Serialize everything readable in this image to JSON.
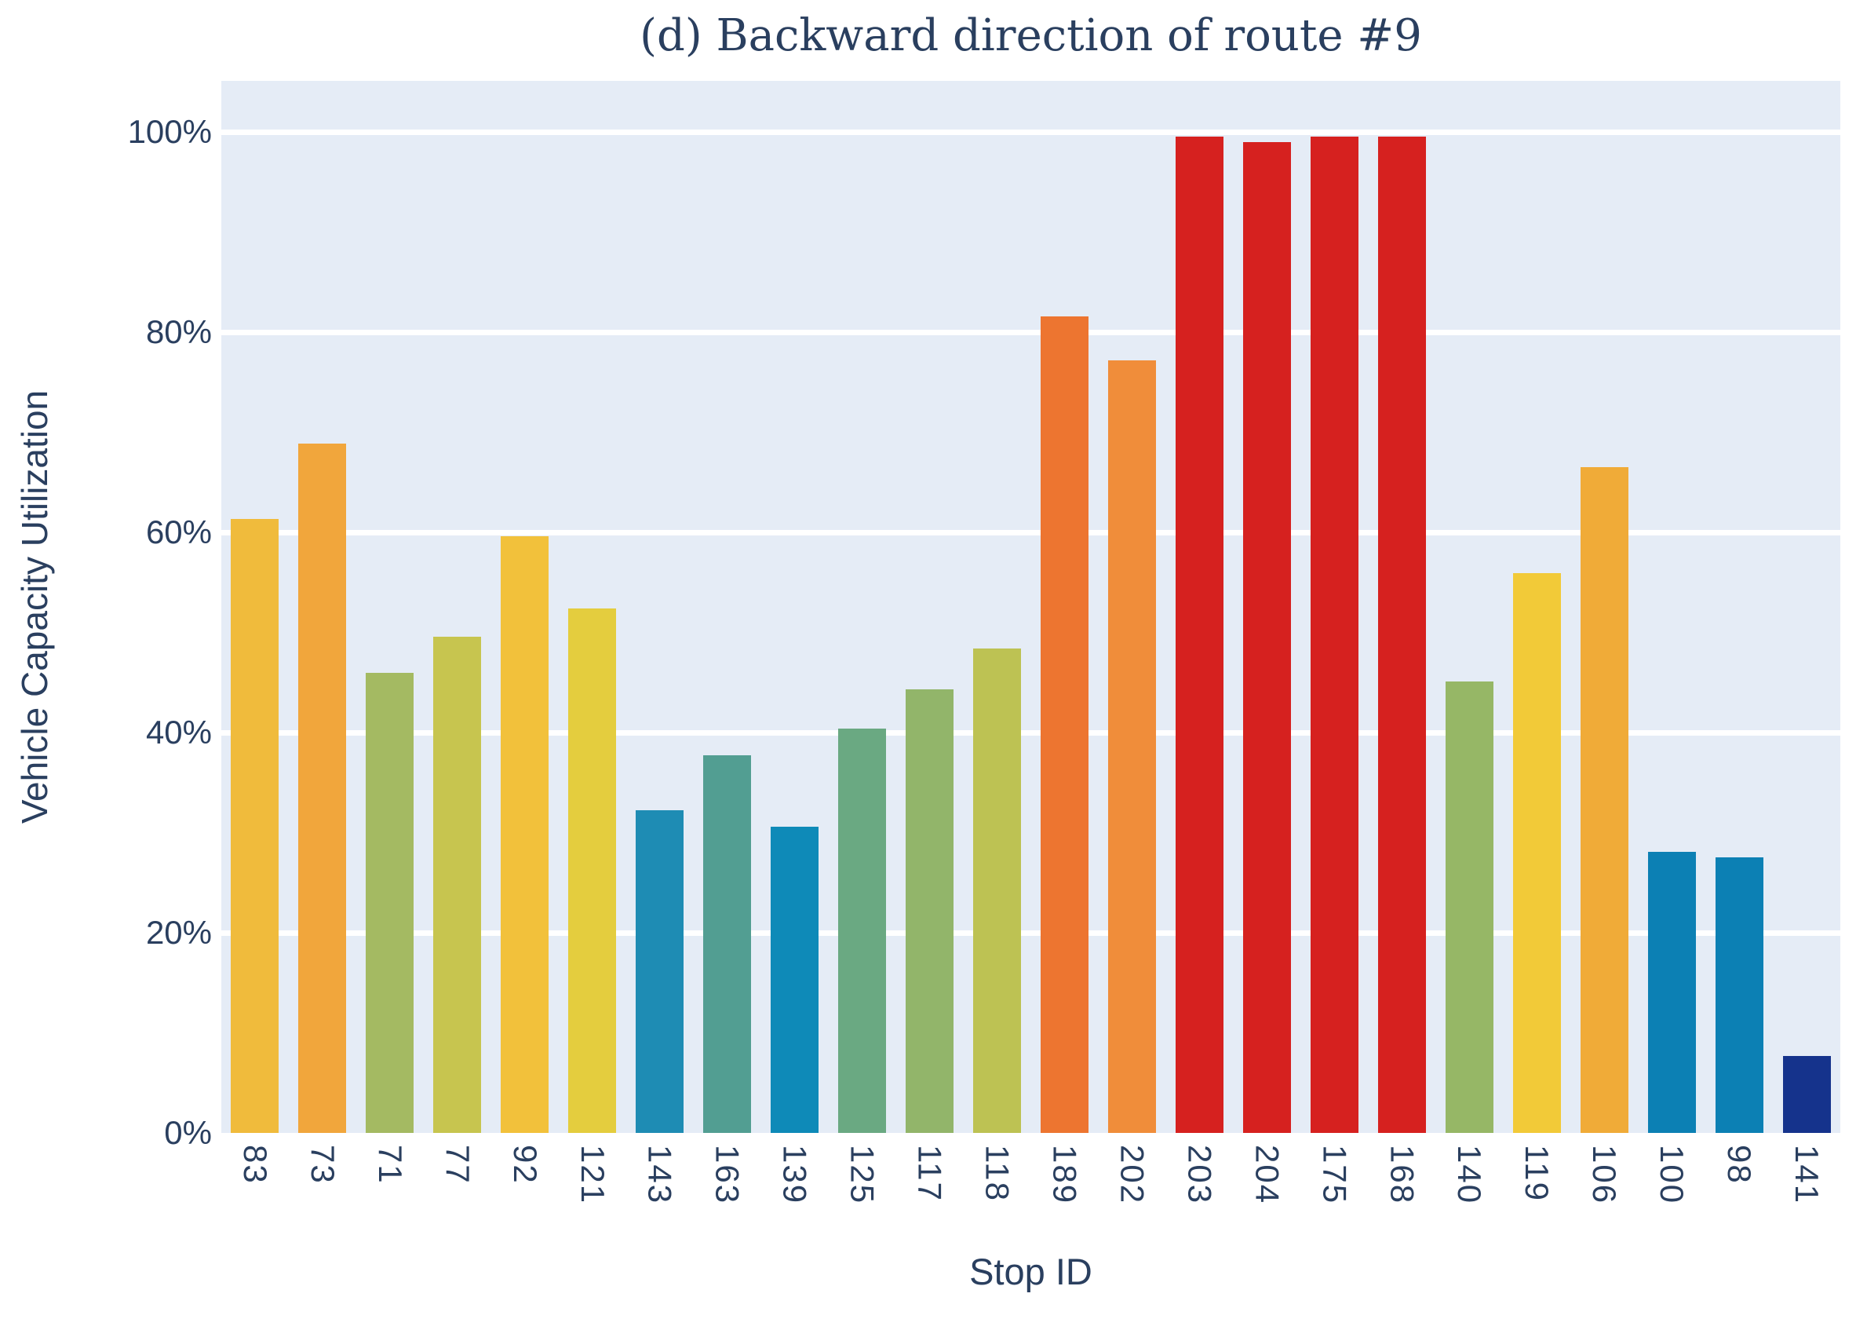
{
  "title": "(d) Backward direction of route #9",
  "chart_data": {
    "type": "bar",
    "title": "(d) Backward direction of route #9",
    "xlabel": "Stop ID",
    "ylabel": "Vehicle Capacity Utilization",
    "categories": [
      "83",
      "73",
      "71",
      "77",
      "92",
      "121",
      "143",
      "163",
      "139",
      "125",
      "117",
      "118",
      "189",
      "202",
      "203",
      "204",
      "175",
      "168",
      "140",
      "119",
      "106",
      "100",
      "98",
      "141"
    ],
    "values": [
      61.3,
      68.9,
      46.0,
      49.6,
      59.6,
      52.4,
      32.2,
      37.7,
      30.6,
      40.4,
      44.3,
      48.4,
      81.6,
      77.2,
      99.5,
      99.0,
      99.5,
      99.5,
      45.1,
      55.9,
      66.5,
      28.1,
      27.5,
      7.7
    ],
    "bar_colors": [
      "#f0bb3c",
      "#f1a63c",
      "#a4ba62",
      "#c7c54f",
      "#f2c13b",
      "#e4cd3e",
      "#1e8cb4",
      "#529e92",
      "#0e8ab8",
      "#6aa982",
      "#92b56a",
      "#bdc253",
      "#ed7530",
      "#f08d3a",
      "#d6211f",
      "#d6211f",
      "#d6211f",
      "#d6211f",
      "#96b766",
      "#f2ca38",
      "#f0ab38",
      "#0c80b4",
      "#0c80b4",
      "#15338c"
    ],
    "y_ticks": [
      {
        "label": "0%",
        "value": 0
      },
      {
        "label": "20%",
        "value": 20
      },
      {
        "label": "40%",
        "value": 40
      },
      {
        "label": "60%",
        "value": 60
      },
      {
        "label": "80%",
        "value": 80
      },
      {
        "label": "100%",
        "value": 100
      }
    ],
    "ylim": [
      0,
      105.1
    ],
    "grid": "horizontal-white",
    "legend": "none",
    "plot_bg_color": "#e5ecf6",
    "text_color": "#2a3f5f",
    "colorscale_note": "Portland colorscale mapped to bar value (min=dark blue, max=red)"
  }
}
